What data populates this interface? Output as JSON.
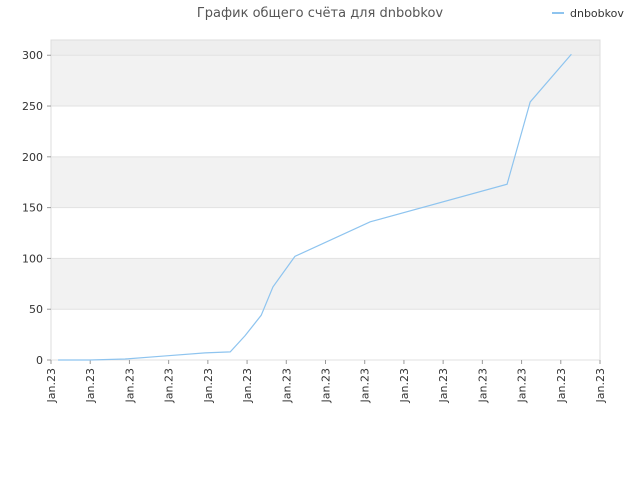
{
  "chart_data": {
    "type": "line",
    "title": "График общего счёта для dnbobkov",
    "series": [
      {
        "name": "dnbobkov",
        "color": "#8ec4ef",
        "x": [
          0.18,
          0.99,
          1.89,
          2.91,
          3.93,
          4.57,
          4.95,
          5.36,
          5.66,
          6.22,
          8.14,
          11.63,
          12.22,
          13.27
        ],
        "values": [
          0,
          0,
          1,
          4,
          7,
          8,
          24,
          44,
          72,
          102,
          136,
          173,
          254,
          301
        ]
      }
    ],
    "xlim": [
      0,
      14
    ],
    "xticks": [
      {
        "value": 0,
        "label": "Jan.23"
      },
      {
        "value": 1,
        "label": "Jan.23"
      },
      {
        "value": 2,
        "label": "Jan.23"
      },
      {
        "value": 3,
        "label": "Jan.23"
      },
      {
        "value": 4,
        "label": "Jan.23"
      },
      {
        "value": 5,
        "label": "Jan.23"
      },
      {
        "value": 6,
        "label": "Jan.23"
      },
      {
        "value": 7,
        "label": "Jan.23"
      },
      {
        "value": 8,
        "label": "Jan.23"
      },
      {
        "value": 9,
        "label": "Jan.23"
      },
      {
        "value": 10,
        "label": "Jan.23"
      },
      {
        "value": 11,
        "label": "Jan.23"
      },
      {
        "value": 12,
        "label": "Jan.23"
      },
      {
        "value": 13,
        "label": "Jan.23"
      },
      {
        "value": 14,
        "label": "Jan.23"
      }
    ],
    "ylim": [
      0,
      315
    ],
    "yticks": [
      0,
      50,
      100,
      150,
      200,
      250,
      300
    ],
    "grid": true,
    "legend": "top-right"
  }
}
